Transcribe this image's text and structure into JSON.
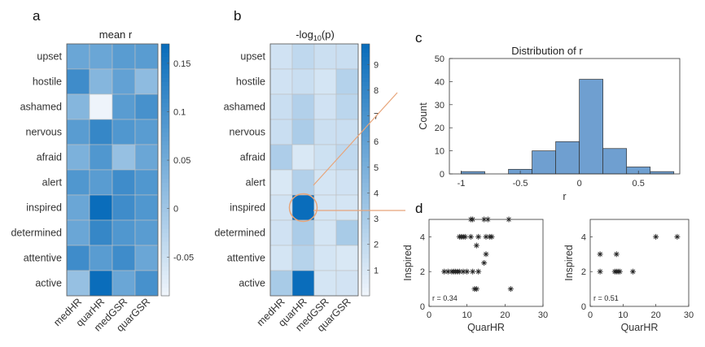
{
  "panels": {
    "a": "a",
    "b": "b",
    "c": "c",
    "d": "d"
  },
  "chart_data": [
    {
      "id": "a",
      "type": "heatmap",
      "title": "mean r",
      "rows": [
        "upset",
        "hostile",
        "ashamed",
        "nervous",
        "afraid",
        "alert",
        "inspired",
        "determined",
        "attentive",
        "active"
      ],
      "columns": [
        "medHR",
        "quarHR",
        "medGSR",
        "quarGSR"
      ],
      "values": [
        [
          0.06,
          0.06,
          0.08,
          0.08
        ],
        [
          0.11,
          0.03,
          0.07,
          0.02
        ],
        [
          0.03,
          -0.09,
          0.08,
          0.1
        ],
        [
          0.08,
          0.12,
          0.09,
          0.08
        ],
        [
          0.04,
          0.09,
          0.01,
          0.06
        ],
        [
          0.09,
          0.08,
          0.11,
          0.09
        ],
        [
          0.06,
          0.17,
          0.11,
          0.09
        ],
        [
          0.06,
          0.12,
          0.09,
          0.08
        ],
        [
          0.11,
          0.08,
          0.11,
          0.06
        ],
        [
          0.01,
          0.18,
          0.06,
          0.1
        ]
      ],
      "colorbar": {
        "min": -0.09,
        "max": 0.17,
        "ticks": [
          -0.05,
          0,
          0.05,
          0.1,
          0.15
        ],
        "tick_labels": [
          "-0.05",
          "0",
          "0.05",
          "0.1",
          "0.15"
        ]
      }
    },
    {
      "id": "b",
      "type": "heatmap",
      "title_base": "-log",
      "title_sub": "10",
      "title_rest": "(p)",
      "rows": [
        "upset",
        "hostile",
        "ashamed",
        "nervous",
        "afraid",
        "alert",
        "inspired",
        "determined",
        "attentive",
        "active"
      ],
      "columns": [
        "medHR",
        "quarHR",
        "medGSR",
        "quarGSR"
      ],
      "values": [
        [
          1.3,
          2.0,
          1.5,
          1.6
        ],
        [
          1.3,
          1.6,
          1.1,
          2.5
        ],
        [
          1.6,
          2.6,
          1.3,
          2.2
        ],
        [
          1.6,
          2.9,
          1.5,
          1.6
        ],
        [
          2.8,
          0.9,
          1.4,
          2.0
        ],
        [
          0.9,
          2.6,
          1.1,
          1.3
        ],
        [
          1.2,
          9.8,
          1.1,
          1.1
        ],
        [
          1.3,
          2.9,
          1.1,
          3.0
        ],
        [
          1.1,
          2.4,
          1.1,
          0.9
        ],
        [
          3.0,
          9.8,
          1.1,
          1.2
        ]
      ],
      "colorbar": {
        "min": 0,
        "max": 9.8,
        "ticks": [
          1,
          2,
          3,
          4,
          5,
          6,
          7,
          8,
          9
        ],
        "tick_labels": [
          "1",
          "2",
          "3",
          "4",
          "5",
          "6",
          "7",
          "8",
          "9"
        ]
      },
      "highlight": {
        "row": "inspired",
        "column": "quarHR"
      }
    },
    {
      "id": "c",
      "type": "bar",
      "title": "Distribution of r",
      "xlabel": "r",
      "ylabel": "Count",
      "bin_edges": [
        -1.0,
        -0.8,
        -0.6,
        -0.4,
        -0.2,
        0.0,
        0.2,
        0.4,
        0.6,
        0.8
      ],
      "values": [
        1,
        0,
        2,
        10,
        14,
        41,
        11,
        3,
        1
      ],
      "xlim": [
        -1.1,
        0.85
      ],
      "ylim": [
        0,
        50
      ],
      "xticks": [
        -1,
        -0.5,
        0,
        0.5
      ],
      "xtick_labels": [
        "-1",
        "-0.5",
        "0",
        "0.5"
      ],
      "yticks": [
        0,
        10,
        20,
        30,
        40,
        50
      ],
      "ytick_labels": [
        "0",
        "10",
        "20",
        "30",
        "40",
        "50"
      ],
      "bar_color": "#6f9fd0"
    },
    {
      "id": "d1",
      "type": "scatter",
      "xlabel": "QuarHR",
      "ylabel": "Inspired",
      "annotation": "r = 0.34",
      "xlim": [
        0,
        30
      ],
      "ylim": [
        0,
        5
      ],
      "xticks": [
        0,
        10,
        20,
        30
      ],
      "xtick_labels": [
        "0",
        "10",
        "20",
        "30"
      ],
      "yticks": [
        0,
        2,
        4
      ],
      "ytick_labels": [
        "0",
        "2",
        "4"
      ],
      "x": [
        11,
        11.5,
        14.5,
        15.5,
        21,
        8,
        8.5,
        9,
        9.5,
        11,
        13,
        15,
        16,
        16.5,
        12.5,
        15,
        14.5,
        4,
        5,
        6,
        6.5,
        7,
        7.5,
        8,
        9,
        10,
        11.5,
        13,
        12,
        12.5,
        21.5
      ],
      "y": [
        5,
        5,
        5,
        5,
        5,
        4,
        4,
        4,
        4,
        4,
        4,
        4,
        4,
        4,
        3.5,
        3,
        2.5,
        2,
        2,
        2,
        2,
        2,
        2,
        2,
        2,
        2,
        2,
        2,
        1,
        1,
        1
      ]
    },
    {
      "id": "d2",
      "type": "scatter",
      "xlabel": "QuarHR",
      "ylabel": "Inspired",
      "annotation": "r = 0.51",
      "xlim": [
        0,
        30
      ],
      "ylim": [
        0,
        5
      ],
      "xticks": [
        0,
        10,
        20,
        30
      ],
      "xtick_labels": [
        "0",
        "10",
        "20",
        "30"
      ],
      "yticks": [
        0,
        2,
        4
      ],
      "ytick_labels": [
        "0",
        "2",
        "4"
      ],
      "x": [
        20,
        26.5,
        3,
        8,
        3,
        7.5,
        8,
        8.5,
        9,
        13
      ],
      "y": [
        4,
        4,
        3,
        3,
        2,
        2,
        2,
        2,
        2,
        2
      ]
    }
  ],
  "colors": {
    "heat_low": "#eef4fb",
    "heat_high": "#0a6dbb",
    "highlight": "#e8a57a",
    "grid": "#bfbfbf"
  }
}
